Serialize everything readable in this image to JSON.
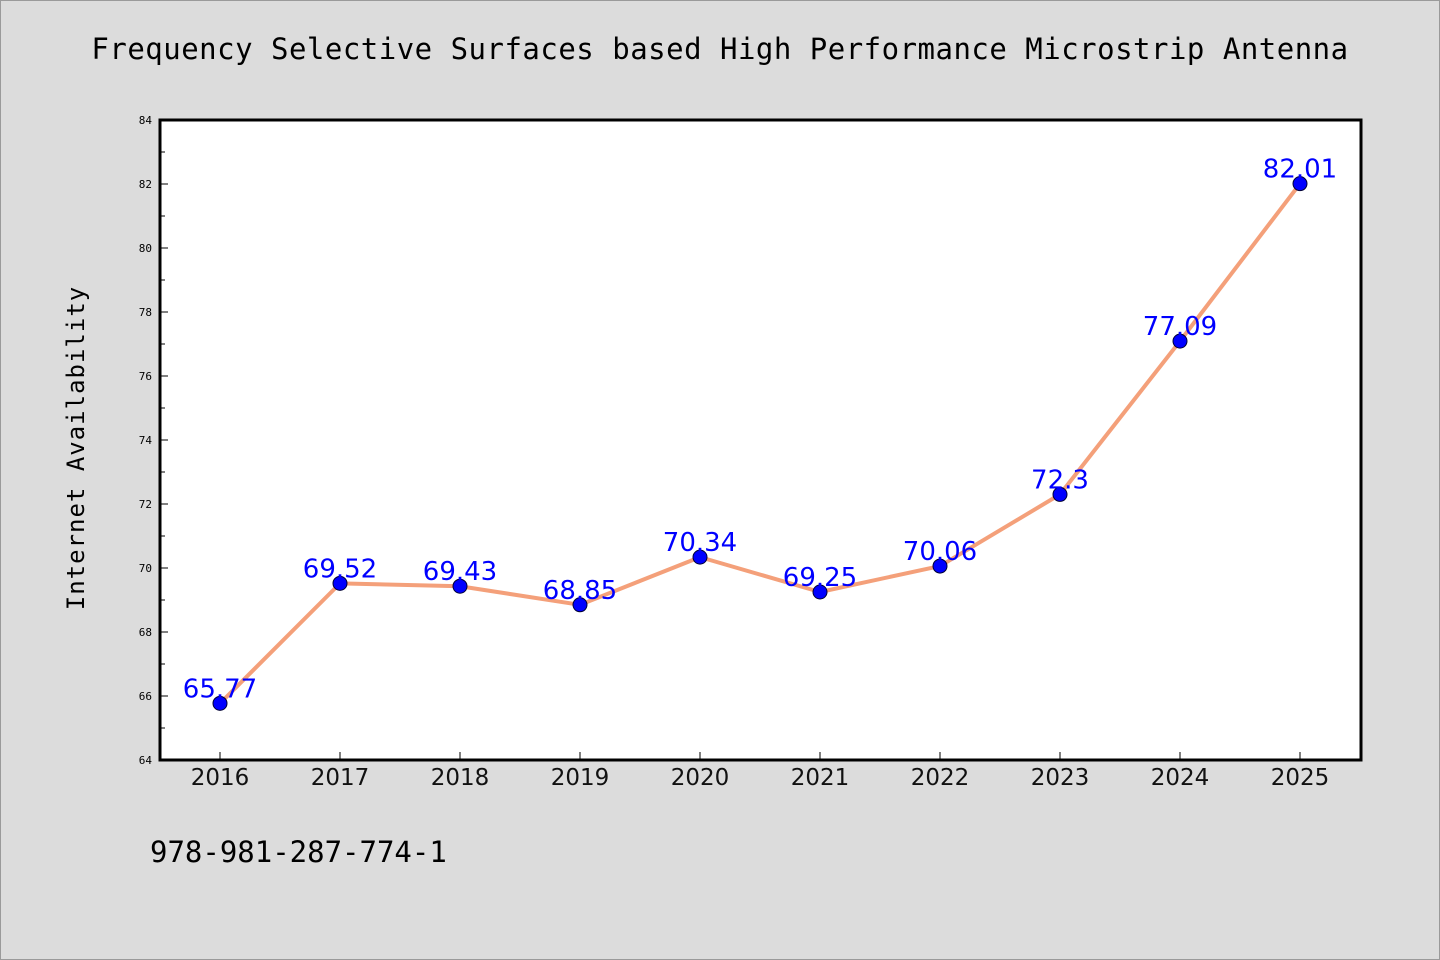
{
  "chart_data": {
    "type": "line",
    "title": "Frequency Selective Surfaces based High Performance Microstrip Antenna",
    "xlabel": "",
    "ylabel": "Internet Availability",
    "categories": [
      "2016",
      "2017",
      "2018",
      "2019",
      "2020",
      "2021",
      "2022",
      "2023",
      "2024",
      "2025"
    ],
    "series": [
      {
        "values": [
          65.77,
          69.52,
          69.43,
          68.85,
          70.34,
          69.25,
          70.06,
          72.3,
          77.09,
          82.01
        ],
        "labels": [
          "65.77",
          "69.52",
          "69.43",
          "68.85",
          "70.34",
          "69.25",
          "70.06",
          "72.3",
          "77.09",
          "82.01"
        ],
        "line_color": "#f4a07a",
        "marker_color": "#0000ff"
      }
    ],
    "ylim": [
      64,
      84
    ],
    "yticks": [
      "64",
      "66",
      "68",
      "70",
      "72",
      "74",
      "76",
      "78",
      "80",
      "82",
      "84"
    ],
    "grid": false,
    "legend": "none"
  },
  "footer": {
    "text": "978-981-287-774-1"
  },
  "colors": {
    "background": "#dcdcdc",
    "plot_background": "#ffffff",
    "label_color": "#0000ff"
  }
}
